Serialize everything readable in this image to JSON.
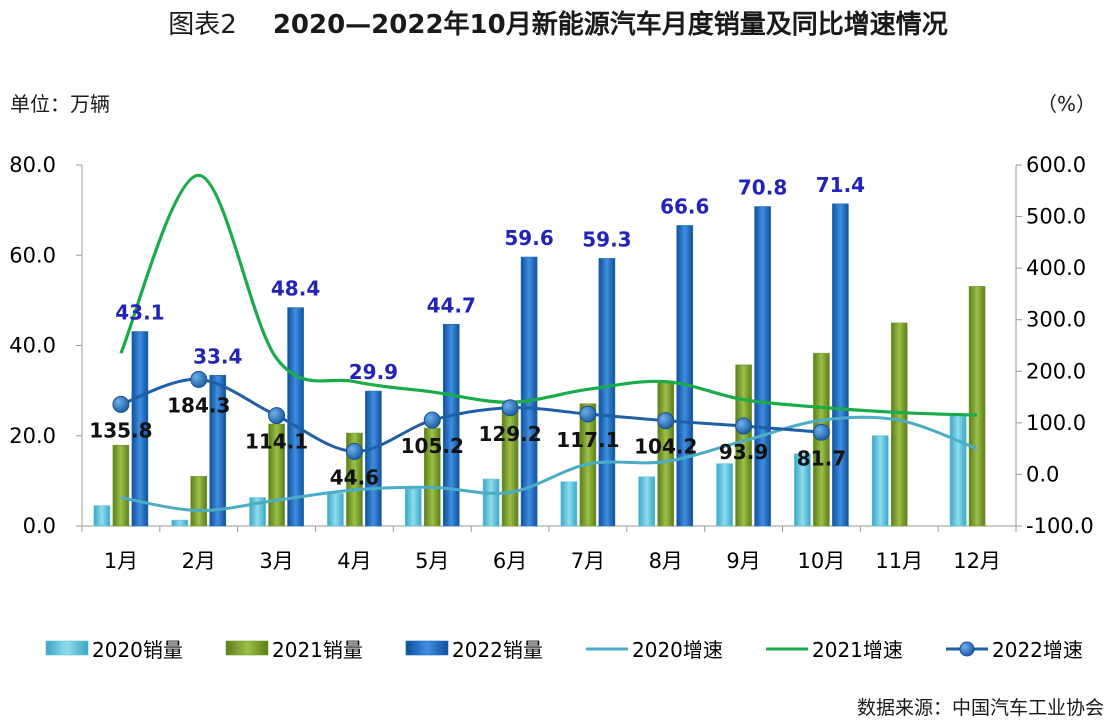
{
  "title": {
    "prefix": "图表2",
    "main": "2020—2022年10月新能源汽车月度销量及同比增速情况"
  },
  "unit_left": "单位：万辆",
  "unit_right": "（%）",
  "source": "数据来源：中国汽车工业协会",
  "colors": {
    "sales_2020": "#5bc4dc",
    "sales_2021": "#7a9c2c",
    "sales_2022": "#1f6cc0",
    "growth_2020": "#4bacc6",
    "growth_2021": "#1aab4a",
    "growth_2022": "#1f5fa6",
    "label_blue": "#2323b8"
  },
  "chart_data": {
    "type": "bar",
    "categories": [
      "1月",
      "2月",
      "3月",
      "4月",
      "5月",
      "6月",
      "7月",
      "8月",
      "9月",
      "10月",
      "11月",
      "12月"
    ],
    "y_left": {
      "ylim": [
        0,
        80
      ],
      "ticks": [
        "0.0",
        "20.0",
        "40.0",
        "60.0",
        "80.0"
      ]
    },
    "y_right": {
      "ylim": [
        -100,
        600
      ],
      "ticks": [
        "-100.0",
        "0.0",
        "100.0",
        "200.0",
        "300.0",
        "400.0",
        "500.0",
        "600.0"
      ]
    },
    "grid": false,
    "legend_position": "bottom",
    "bar_series": [
      {
        "name": "2020销量",
        "values": [
          4.5,
          1.3,
          6.3,
          7.2,
          8.2,
          10.4,
          9.8,
          10.9,
          13.8,
          16.0,
          20.0,
          24.8
        ]
      },
      {
        "name": "2021销量",
        "values": [
          17.9,
          11.0,
          22.6,
          20.6,
          21.7,
          25.6,
          27.1,
          32.1,
          35.7,
          38.3,
          45.0,
          53.1
        ]
      },
      {
        "name": "2022销量",
        "values": [
          43.1,
          33.4,
          48.4,
          29.9,
          44.7,
          59.6,
          59.3,
          66.6,
          70.8,
          71.4,
          null,
          null
        ],
        "labels": [
          "43.1",
          "33.4",
          "48.4",
          "29.9",
          "44.7",
          "59.6",
          "59.3",
          "66.6",
          "70.8",
          "71.4",
          "",
          ""
        ]
      }
    ],
    "line_series": [
      {
        "name": "2020增速",
        "values": [
          -45,
          -70,
          -50,
          -30,
          -25,
          -35,
          20,
          25,
          65,
          105,
          105,
          50
        ]
      },
      {
        "name": "2021增速",
        "values": [
          235,
          580,
          225,
          180,
          160,
          140,
          165,
          180,
          145,
          130,
          120,
          115
        ]
      },
      {
        "name": "2022增速",
        "values": [
          135.8,
          184.3,
          114.1,
          44.6,
          105.2,
          129.2,
          117.1,
          104.2,
          93.9,
          81.7,
          null,
          null
        ],
        "labels": [
          "135.8",
          "184.3",
          "114.1",
          "44.6",
          "105.2",
          "129.2",
          "117.1",
          "104.2",
          "93.9",
          "81.7",
          "",
          ""
        ]
      }
    ]
  }
}
